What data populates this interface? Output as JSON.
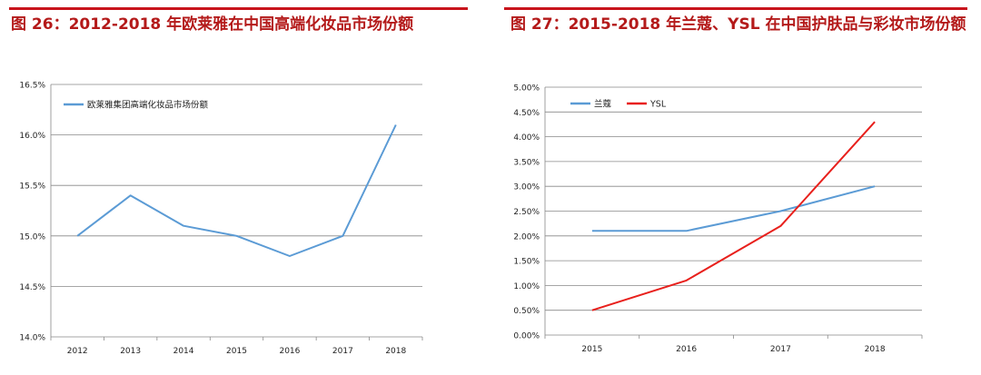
{
  "charts": [
    {
      "figure_title": "图 26：2012-2018 年欧莱雅在中国高端化妆品市场份额",
      "chart_data": {
        "type": "line",
        "title": "",
        "xlabel": "",
        "ylabel": "",
        "categories": [
          "2012",
          "2013",
          "2014",
          "2015",
          "2016",
          "2017",
          "2018"
        ],
        "ylim": [
          14.0,
          16.5
        ],
        "ytick_step": 0.5,
        "ytick_labels": [
          "14.0%",
          "14.5%",
          "15.0%",
          "15.5%",
          "16.0%",
          "16.5%"
        ],
        "grid": true,
        "legend_position": "top-left",
        "series": [
          {
            "name": "欧莱雅集团高端化妆品市场份额",
            "color": "#5b9bd5",
            "values": [
              15.0,
              15.4,
              15.1,
              15.0,
              14.8,
              15.0,
              16.1
            ]
          }
        ]
      }
    },
    {
      "figure_title": "图 27：2015-2018 年兰蔻、YSL 在中国护肤品与彩妆市场份额",
      "chart_data": {
        "type": "line",
        "title": "",
        "xlabel": "",
        "ylabel": "",
        "categories": [
          "2015",
          "2016",
          "2017",
          "2018"
        ],
        "ylim": [
          0.0,
          5.0
        ],
        "ytick_step": 0.5,
        "ytick_labels": [
          "0.00%",
          "0.50%",
          "1.00%",
          "1.50%",
          "2.00%",
          "2.50%",
          "3.00%",
          "3.50%",
          "4.00%",
          "4.50%",
          "5.00%"
        ],
        "grid": true,
        "legend_position": "top-left",
        "series": [
          {
            "name": "兰蔻",
            "color": "#5b9bd5",
            "values": [
              2.1,
              2.1,
              2.5,
              3.0
            ]
          },
          {
            "name": "YSL",
            "color": "#e8201c",
            "values": [
              0.5,
              1.1,
              2.2,
              4.3
            ]
          }
        ]
      }
    }
  ]
}
